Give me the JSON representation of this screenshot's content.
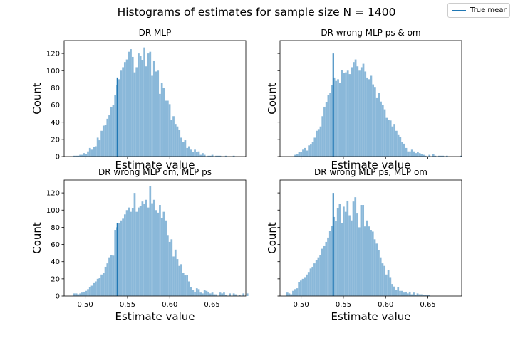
{
  "figure": {
    "title": "Histograms of estimates for sample size N = 1400",
    "legend_label": "True mean",
    "true_mean_color": "#1f77b4",
    "bar_color": "#8ab8d9"
  },
  "chart_data": [
    {
      "type": "bar",
      "title": "DR MLP",
      "xlabel": "Estimate value",
      "ylabel": "Count",
      "xlim": [
        0.475,
        0.69
      ],
      "ylim": [
        0,
        135
      ],
      "yticks": [
        "0",
        "20",
        "40",
        "60",
        "80",
        "100",
        "120"
      ],
      "xticks": [
        "0.50",
        "0.55",
        "0.60",
        "0.65"
      ],
      "x_tick_labels_shown": false,
      "y_tick_labels_shown": true,
      "true_mean": 0.538,
      "true_mean_height": 92,
      "bin_start": 0.486,
      "bin_width": 0.0023,
      "counts": [
        1,
        1,
        1,
        2,
        2,
        4,
        3,
        6,
        10,
        8,
        11,
        12,
        22,
        19,
        30,
        36,
        37,
        44,
        48,
        58,
        60,
        72,
        83,
        90,
        100,
        104,
        110,
        113,
        122,
        125,
        116,
        98,
        104,
        120,
        117,
        112,
        127,
        105,
        120,
        122,
        94,
        111,
        99,
        100,
        73,
        86,
        80,
        65,
        65,
        61,
        43,
        47,
        38,
        35,
        31,
        22,
        17,
        19,
        10,
        12,
        8,
        5,
        8,
        5,
        6,
        2,
        4,
        2,
        0,
        1,
        1,
        2,
        0,
        1,
        1,
        1,
        0,
        0,
        1,
        0,
        0,
        0,
        1
      ]
    },
    {
      "type": "bar",
      "title": "DR wrong MLP ps & om",
      "xlabel": "Estimate value",
      "ylabel": "Count",
      "xlim": [
        0.475,
        0.69
      ],
      "ylim": [
        0,
        135
      ],
      "yticks": [
        "0",
        "20",
        "40",
        "60",
        "80",
        "100",
        "120"
      ],
      "xticks": [
        "0.50",
        "0.55",
        "0.60",
        "0.65"
      ],
      "x_tick_labels_shown": false,
      "y_tick_labels_shown": false,
      "true_mean": 0.538,
      "true_mean_height": 120,
      "bin_start": 0.492,
      "bin_width": 0.0023,
      "counts": [
        2,
        3,
        5,
        5,
        8,
        10,
        7,
        13,
        14,
        17,
        22,
        30,
        32,
        35,
        47,
        58,
        63,
        72,
        74,
        83,
        92,
        88,
        90,
        86,
        101,
        97,
        98,
        100,
        96,
        104,
        110,
        113,
        105,
        100,
        104,
        108,
        99,
        92,
        90,
        94,
        84,
        81,
        68,
        74,
        64,
        60,
        55,
        45,
        43,
        42,
        35,
        38,
        30,
        25,
        23,
        17,
        15,
        10,
        6,
        6,
        8,
        6,
        4,
        5,
        4,
        3,
        2,
        1,
        0,
        2,
        0,
        3,
        1,
        0,
        1,
        1,
        1,
        0,
        1,
        0,
        0,
        0,
        0,
        0,
        0,
        1
      ]
    },
    {
      "type": "bar",
      "title": "DR wrong MLP om, MLP ps",
      "xlabel": "Estimate value",
      "ylabel": "Count",
      "xlim": [
        0.475,
        0.69
      ],
      "ylim": [
        0,
        135
      ],
      "yticks": [
        "0",
        "20",
        "40",
        "60",
        "80",
        "100",
        "120"
      ],
      "xticks": [
        "0.50",
        "0.55",
        "0.60",
        "0.65"
      ],
      "x_tick_labels_shown": true,
      "y_tick_labels_shown": true,
      "true_mean": 0.538,
      "true_mean_height": 85,
      "bin_start": 0.486,
      "bin_width": 0.0023,
      "counts": [
        3,
        3,
        2,
        3,
        4,
        5,
        6,
        8,
        10,
        12,
        15,
        17,
        20,
        21,
        25,
        27,
        34,
        38,
        45,
        48,
        47,
        77,
        80,
        85,
        88,
        90,
        95,
        100,
        103,
        98,
        102,
        120,
        98,
        103,
        105,
        110,
        107,
        112,
        103,
        128,
        108,
        112,
        100,
        97,
        106,
        91,
        98,
        88,
        71,
        63,
        66,
        46,
        54,
        43,
        35,
        37,
        27,
        24,
        24,
        17,
        10,
        7,
        5,
        9,
        8,
        4,
        3,
        7,
        6,
        5,
        3,
        4,
        2,
        2,
        0,
        4,
        3,
        4,
        1,
        0,
        3,
        0,
        3,
        2,
        0,
        1,
        0,
        3,
        0,
        3
      ]
    },
    {
      "type": "bar",
      "title": "DR wrong MLP ps, MLP om",
      "xlabel": "Estimate value",
      "ylabel": "Count",
      "xlim": [
        0.475,
        0.69
      ],
      "ylim": [
        0,
        135
      ],
      "yticks": [
        "0",
        "20",
        "40",
        "60",
        "80",
        "100",
        "120"
      ],
      "xticks": [
        "0.50",
        "0.55",
        "0.60",
        "0.65"
      ],
      "x_tick_labels_shown": true,
      "y_tick_labels_shown": false,
      "true_mean": 0.538,
      "true_mean_height": 120,
      "bin_start": 0.4825,
      "bin_width": 0.0023,
      "counts": [
        4,
        3,
        2,
        6,
        8,
        9,
        16,
        18,
        20,
        22,
        25,
        28,
        32,
        34,
        38,
        42,
        45,
        48,
        55,
        58,
        63,
        68,
        76,
        82,
        92,
        87,
        102,
        107,
        85,
        104,
        98,
        111,
        94,
        88,
        110,
        115,
        96,
        80,
        106,
        106,
        81,
        88,
        81,
        77,
        75,
        66,
        61,
        53,
        45,
        38,
        35,
        25,
        30,
        22,
        14,
        11,
        7,
        10,
        6,
        6,
        4,
        5,
        3,
        5,
        2,
        4,
        1,
        3,
        2,
        2,
        1,
        1,
        1,
        1
      ]
    }
  ]
}
